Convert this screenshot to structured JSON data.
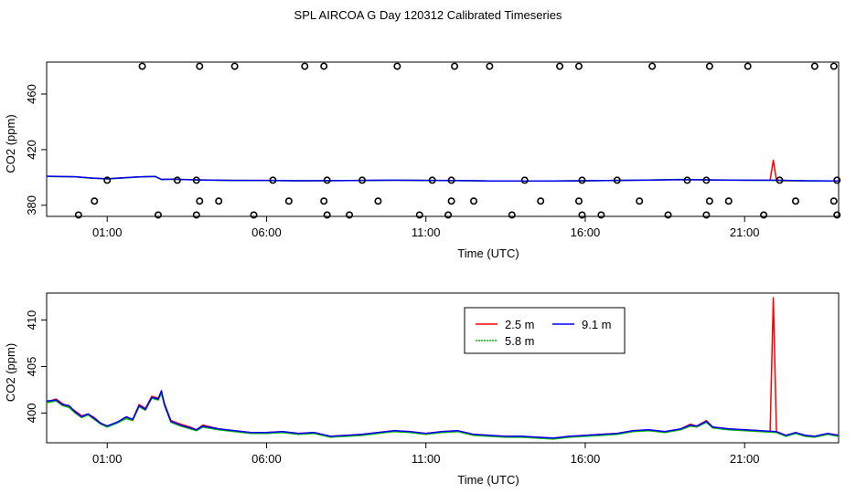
{
  "title": "SPL AIRCOA G  Day 120312  Calibrated Timeseries",
  "chart_data": [
    {
      "type": "line",
      "title": "",
      "xlabel": "Time (UTC)",
      "ylabel": "CO2 (ppm)",
      "xlim": [
        -0.9,
        23.95
      ],
      "ylim": [
        372,
        483
      ],
      "xticks": [
        {
          "value": 1,
          "label": "01:00"
        },
        {
          "value": 6,
          "label": "06:00"
        },
        {
          "value": 11,
          "label": "11:00"
        },
        {
          "value": 16,
          "label": "16:00"
        },
        {
          "value": 21,
          "label": "21:00"
        }
      ],
      "yticks": [
        {
          "value": 380,
          "label": "380"
        },
        {
          "value": 420,
          "label": "420"
        },
        {
          "value": 460,
          "label": "460"
        }
      ],
      "calibration_levels": [
        {
          "level": 480,
          "times": [
            2.1,
            3.9,
            5.0,
            7.2,
            7.8,
            10.1,
            11.9,
            13.0,
            15.2,
            15.8,
            18.1,
            19.9,
            21.1,
            23.2,
            23.8
          ]
        },
        {
          "level": 398,
          "times": [
            1.0,
            3.2,
            3.8,
            6.2,
            7.9,
            9.0,
            11.2,
            11.8,
            14.1,
            15.9,
            17.0,
            19.2,
            19.8,
            22.1,
            23.9
          ]
        },
        {
          "level": 383,
          "times": [
            0.6,
            3.9,
            4.5,
            6.7,
            7.8,
            9.5,
            11.8,
            12.5,
            14.6,
            15.8,
            17.7,
            19.9,
            20.5,
            22.6,
            23.8
          ]
        },
        {
          "level": 373,
          "times": [
            0.1,
            2.6,
            3.8,
            5.6,
            7.9,
            8.6,
            10.8,
            11.7,
            13.7,
            15.9,
            16.5,
            18.6,
            19.8,
            21.6,
            23.9
          ]
        }
      ],
      "series": [
        {
          "name": "2.5 m",
          "color": "#ff0000",
          "x": [
            -0.9,
            0.0,
            0.5,
            1.0,
            1.5,
            2.0,
            2.5,
            2.7,
            3.0,
            3.5,
            4.0,
            5.0,
            6.0,
            7.0,
            8.0,
            9.0,
            10.0,
            11.0,
            12.0,
            13.0,
            14.0,
            15.0,
            16.0,
            17.0,
            18.0,
            19.0,
            20.0,
            21.0,
            21.8,
            21.9,
            22.0,
            22.2,
            23.0,
            23.95
          ],
          "values": [
            400.8,
            400.5,
            399.6,
            399.0,
            399.7,
            400.4,
            400.7,
            398.6,
            398.8,
            398.5,
            398.2,
            397.9,
            397.9,
            397.6,
            397.7,
            397.9,
            398.0,
            397.9,
            397.8,
            397.5,
            397.4,
            397.4,
            397.6,
            397.9,
            398.1,
            398.5,
            398.2,
            398.0,
            398.0,
            412.4,
            398.0,
            397.6,
            397.5,
            397.5
          ]
        },
        {
          "name": "5.8 m",
          "color": "#00bb00",
          "x": [
            -0.9,
            0.0,
            0.5,
            1.0,
            1.5,
            2.0,
            2.5,
            2.7,
            3.0,
            3.5,
            4.0,
            5.0,
            6.0,
            7.0,
            8.0,
            9.0,
            10.0,
            11.0,
            12.0,
            13.0,
            14.0,
            15.0,
            16.0,
            17.0,
            18.0,
            19.0,
            20.0,
            21.0,
            22.0,
            23.0,
            23.95
          ],
          "values": [
            400.8,
            400.4,
            399.5,
            398.9,
            399.6,
            400.3,
            400.8,
            398.5,
            398.7,
            398.4,
            398.1,
            397.9,
            397.8,
            397.6,
            397.7,
            397.8,
            398.0,
            397.9,
            397.7,
            397.5,
            397.4,
            397.4,
            397.6,
            397.9,
            398.1,
            398.6,
            398.2,
            398.0,
            397.9,
            397.5,
            397.5
          ]
        },
        {
          "name": "9.1 m",
          "color": "#0000ff",
          "x": [
            -0.9,
            0.0,
            0.5,
            1.0,
            1.5,
            2.0,
            2.5,
            2.7,
            3.0,
            3.5,
            4.0,
            5.0,
            6.0,
            7.0,
            8.0,
            9.0,
            10.0,
            11.0,
            12.0,
            13.0,
            14.0,
            15.0,
            16.0,
            17.0,
            18.0,
            19.0,
            20.0,
            21.0,
            22.0,
            23.0,
            23.95
          ],
          "values": [
            400.9,
            400.5,
            399.6,
            399.0,
            399.8,
            400.4,
            400.8,
            398.6,
            398.8,
            398.5,
            398.2,
            397.9,
            397.9,
            397.6,
            397.7,
            397.9,
            398.0,
            397.9,
            397.8,
            397.5,
            397.4,
            397.4,
            397.6,
            397.9,
            398.1,
            398.5,
            398.2,
            398.0,
            398.0,
            397.6,
            397.5
          ]
        }
      ]
    },
    {
      "type": "line",
      "title": "",
      "xlabel": "Time (UTC)",
      "ylabel": "CO2 (ppm)",
      "xlim": [
        -0.9,
        23.95
      ],
      "ylim": [
        396.8,
        412.9
      ],
      "xticks": [
        {
          "value": 1,
          "label": "01:00"
        },
        {
          "value": 6,
          "label": "06:00"
        },
        {
          "value": 11,
          "label": "11:00"
        },
        {
          "value": 16,
          "label": "16:00"
        },
        {
          "value": 21,
          "label": "21:00"
        }
      ],
      "yticks": [
        {
          "value": 400,
          "label": "400"
        },
        {
          "value": 405,
          "label": "405"
        },
        {
          "value": 410,
          "label": "410"
        }
      ],
      "legend": {
        "placement": "top-center",
        "entries": [
          "2.5 m",
          "9.1 m",
          "5.8 m"
        ]
      },
      "series": [
        {
          "name": "2.5 m",
          "color": "#ff0000",
          "x": [
            -0.9,
            -0.6,
            -0.4,
            -0.2,
            0.0,
            0.2,
            0.4,
            0.6,
            0.8,
            1.0,
            1.3,
            1.6,
            1.8,
            2.0,
            2.2,
            2.4,
            2.6,
            2.7,
            2.8,
            3.0,
            3.3,
            3.6,
            3.8,
            4.0,
            4.5,
            5.0,
            5.5,
            6.0,
            6.5,
            7.0,
            7.5,
            8.0,
            8.5,
            9.0,
            9.5,
            10.0,
            10.5,
            11.0,
            11.5,
            12.0,
            12.5,
            13.0,
            13.5,
            14.0,
            14.5,
            15.0,
            15.5,
            16.0,
            16.5,
            17.0,
            17.5,
            18.0,
            18.5,
            19.0,
            19.3,
            19.5,
            19.8,
            20.0,
            20.5,
            21.0,
            21.5,
            21.8,
            21.9,
            22.0,
            22.3,
            22.6,
            22.9,
            23.2,
            23.6,
            23.95
          ],
          "values": [
            401.2,
            401.5,
            401.0,
            400.7,
            400.2,
            399.7,
            399.9,
            399.5,
            398.9,
            398.6,
            399.0,
            399.5,
            399.3,
            400.9,
            400.5,
            401.8,
            401.6,
            402.3,
            401.0,
            399.2,
            398.8,
            398.5,
            398.2,
            398.7,
            398.3,
            398.1,
            397.9,
            397.9,
            398.0,
            397.8,
            397.9,
            397.5,
            397.6,
            397.7,
            397.9,
            398.1,
            398.0,
            397.8,
            398.0,
            398.1,
            397.7,
            397.6,
            397.5,
            397.5,
            397.4,
            397.3,
            397.5,
            397.6,
            397.7,
            397.8,
            398.1,
            398.2,
            398.0,
            398.3,
            398.8,
            398.6,
            399.2,
            398.5,
            398.3,
            398.2,
            398.1,
            398.0,
            412.4,
            398.0,
            397.6,
            397.9,
            397.6,
            397.5,
            397.8,
            397.6
          ]
        },
        {
          "name": "5.8 m",
          "color": "#00bb00",
          "x": [
            -0.9,
            -0.6,
            -0.4,
            -0.2,
            0.0,
            0.2,
            0.4,
            0.6,
            0.8,
            1.0,
            1.3,
            1.6,
            1.8,
            2.0,
            2.2,
            2.4,
            2.6,
            2.7,
            2.8,
            3.0,
            3.3,
            3.6,
            3.8,
            4.0,
            4.5,
            5.0,
            5.5,
            6.0,
            6.5,
            7.0,
            7.5,
            8.0,
            8.5,
            9.0,
            9.5,
            10.0,
            10.5,
            11.0,
            11.5,
            12.0,
            12.5,
            13.0,
            13.5,
            14.0,
            14.5,
            15.0,
            15.5,
            16.0,
            16.5,
            17.0,
            17.5,
            18.0,
            18.5,
            19.0,
            19.3,
            19.5,
            19.8,
            20.0,
            20.5,
            21.0,
            21.5,
            22.0,
            22.3,
            22.6,
            22.9,
            23.2,
            23.6,
            23.95
          ],
          "values": [
            401.1,
            401.3,
            400.8,
            400.6,
            400.0,
            399.5,
            399.8,
            399.3,
            398.8,
            398.5,
            398.9,
            399.4,
            399.2,
            400.7,
            400.3,
            401.6,
            401.4,
            402.1,
            400.8,
            399.0,
            398.6,
            398.3,
            398.1,
            398.5,
            398.2,
            398.0,
            397.8,
            397.8,
            397.9,
            397.7,
            397.8,
            397.4,
            397.5,
            397.6,
            397.8,
            398.0,
            397.9,
            397.7,
            397.9,
            398.0,
            397.6,
            397.5,
            397.4,
            397.4,
            397.3,
            397.2,
            397.4,
            397.5,
            397.6,
            397.7,
            398.0,
            398.1,
            397.9,
            398.2,
            398.6,
            398.5,
            399.0,
            398.4,
            398.2,
            398.1,
            398.0,
            397.9,
            397.5,
            397.8,
            397.5,
            397.4,
            397.7,
            397.5
          ]
        },
        {
          "name": "9.1 m",
          "color": "#0000ff",
          "x": [
            -0.9,
            -0.6,
            -0.4,
            -0.2,
            0.0,
            0.2,
            0.4,
            0.6,
            0.8,
            1.0,
            1.3,
            1.6,
            1.8,
            2.0,
            2.2,
            2.4,
            2.6,
            2.7,
            2.8,
            3.0,
            3.3,
            3.6,
            3.8,
            4.0,
            4.5,
            5.0,
            5.5,
            6.0,
            6.5,
            7.0,
            7.5,
            8.0,
            8.5,
            9.0,
            9.5,
            10.0,
            10.5,
            11.0,
            11.5,
            12.0,
            12.5,
            13.0,
            13.5,
            14.0,
            14.5,
            15.0,
            15.5,
            16.0,
            16.5,
            17.0,
            17.5,
            18.0,
            18.5,
            19.0,
            19.3,
            19.5,
            19.8,
            20.0,
            20.5,
            21.0,
            21.5,
            22.0,
            22.3,
            22.6,
            22.9,
            23.2,
            23.6,
            23.95
          ],
          "values": [
            401.3,
            401.4,
            400.9,
            400.8,
            400.1,
            399.6,
            399.9,
            399.4,
            398.9,
            398.6,
            399.0,
            399.6,
            399.3,
            400.8,
            400.4,
            401.7,
            401.5,
            402.4,
            400.9,
            399.1,
            398.7,
            398.4,
            398.2,
            398.6,
            398.3,
            398.1,
            397.9,
            397.9,
            398.0,
            397.8,
            397.9,
            397.5,
            397.6,
            397.7,
            397.9,
            398.1,
            398.0,
            397.8,
            398.0,
            398.1,
            397.7,
            397.6,
            397.5,
            397.5,
            397.4,
            397.3,
            397.5,
            397.6,
            397.7,
            397.8,
            398.1,
            398.2,
            398.0,
            398.3,
            398.7,
            398.6,
            399.1,
            398.5,
            398.3,
            398.2,
            398.1,
            398.0,
            397.6,
            397.9,
            397.6,
            397.5,
            397.8,
            397.6
          ]
        }
      ]
    }
  ]
}
